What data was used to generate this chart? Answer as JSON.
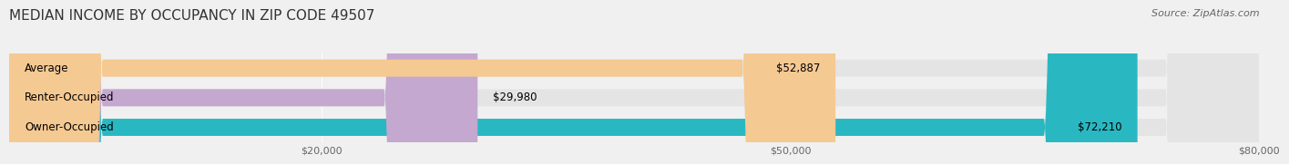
{
  "title": "MEDIAN INCOME BY OCCUPANCY IN ZIP CODE 49507",
  "source": "Source: ZipAtlas.com",
  "categories": [
    "Owner-Occupied",
    "Renter-Occupied",
    "Average"
  ],
  "values": [
    72210,
    29980,
    52887
  ],
  "bar_colors": [
    "#29b8c2",
    "#c4a8d0",
    "#f5c992"
  ],
  "value_labels": [
    "$72,210",
    "$29,980",
    "$52,887"
  ],
  "xlim": [
    0,
    80000
  ],
  "xticks": [
    20000,
    50000,
    80000
  ],
  "xtick_labels": [
    "$20,000",
    "$50,000",
    "$80,000"
  ],
  "background_color": "#f0f0f0",
  "bar_background_color": "#e4e4e4",
  "title_fontsize": 11,
  "source_fontsize": 8,
  "label_fontsize": 8.5,
  "value_fontsize": 8.5,
  "bar_height": 0.58
}
